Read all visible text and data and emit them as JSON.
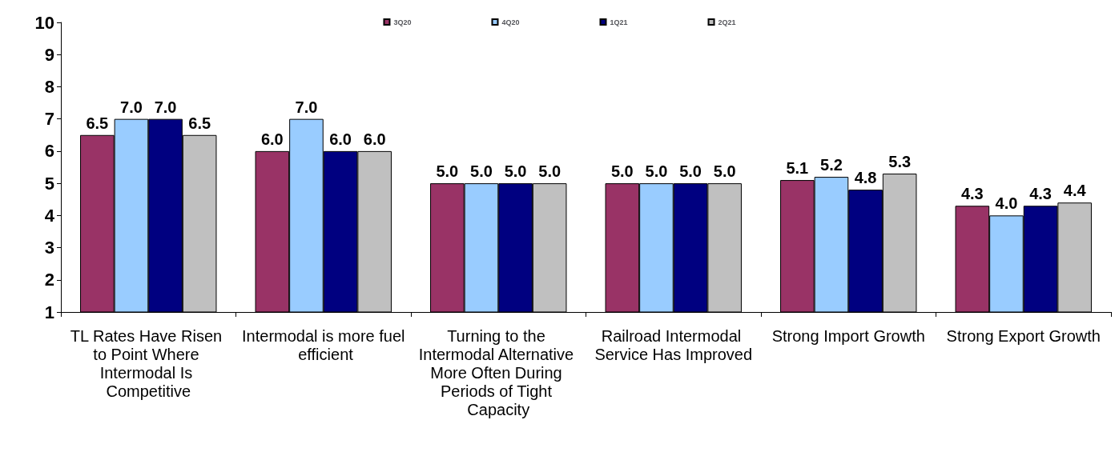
{
  "chart_data": {
    "type": "bar",
    "categories": [
      "TL Rates Have Risen to Point Where Intermodal Is Competitive",
      "Intermodal is more fuel efficient",
      "Turning to the Intermodal Alternative More Often During Periods of Tight Capacity",
      "Railroad Intermodal Service Has Improved",
      "Strong Import Growth",
      "Strong Export Growth"
    ],
    "series": [
      {
        "name": "3Q20",
        "color": "#993366",
        "values": [
          6.5,
          6.0,
          5.0,
          5.0,
          5.1,
          4.3
        ],
        "value_labels": [
          "6.5",
          "6.0",
          "5.0",
          "5.0",
          "5.1",
          "4.3"
        ]
      },
      {
        "name": "4Q20",
        "color": "#99ccff",
        "values": [
          7.0,
          7.0,
          5.0,
          5.0,
          5.2,
          4.0
        ],
        "value_labels": [
          "7.0",
          "7.0",
          "5.0",
          "5.0",
          "5.2",
          "4.0"
        ]
      },
      {
        "name": "1Q21",
        "color": "#000080",
        "values": [
          7.0,
          6.0,
          5.0,
          5.0,
          4.8,
          4.3
        ],
        "value_labels": [
          "7.0",
          "6.0",
          "5.0",
          "5.0",
          "4.8",
          "4.3"
        ]
      },
      {
        "name": "2Q21",
        "color": "#c0c0c0",
        "values": [
          6.5,
          6.0,
          5.0,
          5.0,
          5.3,
          4.4
        ],
        "value_labels": [
          "6.5",
          "6.0",
          "5.0",
          "5.0",
          "5.3",
          "4.4"
        ]
      }
    ],
    "ylim": [
      1,
      10
    ],
    "yticks": [
      1,
      2,
      3,
      4,
      5,
      6,
      7,
      8,
      9,
      10
    ],
    "grid": false,
    "legend": "top"
  }
}
